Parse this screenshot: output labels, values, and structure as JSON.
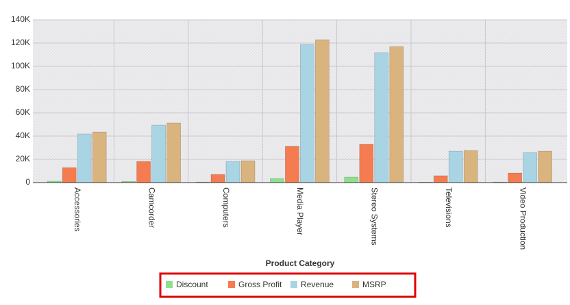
{
  "chart_data": {
    "type": "bar",
    "x_label": "Product Category",
    "categories": [
      "Accessories",
      "Camcorder",
      "Computers",
      "Media Player",
      "Stereo Systems",
      "Televisions",
      "Video Production"
    ],
    "series": [
      {
        "name": "Discount",
        "color": "#8ee08e",
        "values": [
          1200,
          1000,
          500,
          3500,
          4700,
          400,
          500
        ]
      },
      {
        "name": "Gross Profit",
        "color": "#f47c50",
        "values": [
          12900,
          18200,
          7000,
          31200,
          32900,
          5900,
          8200
        ]
      },
      {
        "name": "Revenue",
        "color": "#a9d4e4",
        "values": [
          41800,
          49400,
          18200,
          118800,
          111800,
          27000,
          25900
        ]
      },
      {
        "name": "MSRP",
        "color": "#d9b47e",
        "values": [
          43500,
          51200,
          18800,
          122900,
          117000,
          27600,
          27000
        ]
      }
    ],
    "ylim": [
      0,
      140000
    ],
    "yticks": [
      0,
      {
        "value": 20000,
        "label": "20K"
      },
      {
        "value": 40000,
        "label": "40K"
      },
      {
        "value": 60000,
        "label": "60K"
      },
      {
        "value": 80000,
        "label": "80K"
      },
      {
        "value": 100000,
        "label": "100K"
      },
      {
        "value": 120000,
        "label": "120K"
      },
      {
        "value": 140000,
        "label": "140K"
      }
    ],
    "grid": true
  }
}
